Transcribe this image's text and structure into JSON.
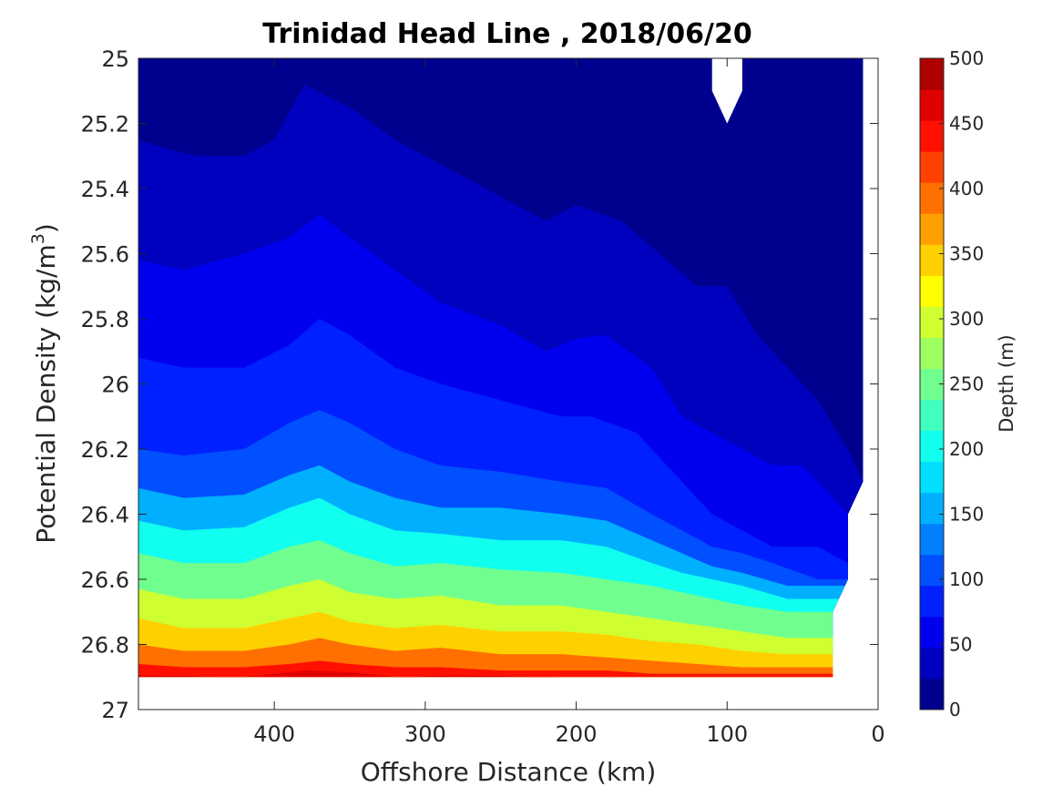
{
  "chart_data": {
    "type": "contour",
    "title": "Trinidad Head Line , 2018/06/20",
    "xlabel": "Offshore Distance (km)",
    "ylabel_main": "Potential Density (kg/m",
    "ylabel_sup": "3",
    "ylabel_close": ")",
    "xlim": [
      490,
      0
    ],
    "ylim": [
      25,
      27
    ],
    "x_reversed": true,
    "y_reversed": true,
    "xticks": [
      400,
      300,
      200,
      100,
      0
    ],
    "xtick_labels": [
      "400",
      "300",
      "200",
      "100",
      "0"
    ],
    "yticks": [
      25,
      25.2,
      25.4,
      25.6,
      25.8,
      26,
      26.2,
      26.4,
      26.6,
      26.8,
      27
    ],
    "ytick_labels": [
      "25",
      "25.2",
      "25.4",
      "25.6",
      "25.8",
      "26",
      "26.2",
      "26.4",
      "26.6",
      "26.8",
      "27"
    ],
    "colorbar": {
      "label": "Depth (m)",
      "range": [
        0,
        500
      ],
      "ticks": [
        0,
        50,
        100,
        150,
        200,
        250,
        300,
        350,
        400,
        450,
        500
      ],
      "tick_labels": [
        "0",
        "50",
        "100",
        "150",
        "200",
        "250",
        "300",
        "350",
        "400",
        "450",
        "500"
      ],
      "colors": [
        "#00008f",
        "#0000bf",
        "#0000ef",
        "#0020ff",
        "#0050ff",
        "#0080ff",
        "#00b0ff",
        "#00dfff",
        "#10ffef",
        "#40ffbf",
        "#70ff8f",
        "#9fff60",
        "#cfff30",
        "#ffff00",
        "#ffd000",
        "#ffa000",
        "#ff7000",
        "#ff4000",
        "#ff1000",
        "#df0000",
        "#af0000"
      ]
    },
    "data_extent": {
      "x_top": [
        490,
        10
      ],
      "bottom_density": 26.9,
      "east_boundary": [
        [
          10,
          25.0
        ],
        [
          10,
          26.3
        ],
        [
          20,
          26.4
        ],
        [
          20,
          26.6
        ],
        [
          30,
          26.7
        ],
        [
          30,
          26.9
        ]
      ]
    },
    "missing_region": {
      "x": [
        90,
        100,
        110
      ],
      "y_top": 25,
      "y_tip": 25.2
    },
    "depth_contours": [
      {
        "level": 10,
        "points": [
          [
            490,
            25.0
          ],
          [
            440,
            25.0
          ],
          [
            410,
            25.0
          ],
          [
            400,
            25.0
          ],
          [
            300,
            25.0
          ],
          [
            280,
            25.0
          ],
          [
            210,
            25.0
          ],
          [
            150,
            25.0
          ],
          [
            125,
            25.0
          ],
          [
            115,
            25.0
          ]
        ]
      },
      {
        "level": 20,
        "points": [
          [
            490,
            25.06
          ],
          [
            460,
            25.04
          ],
          [
            420,
            25.0
          ],
          [
            380,
            25.0
          ],
          [
            320,
            25.0
          ],
          [
            290,
            25.1
          ],
          [
            260,
            25.18
          ],
          [
            220,
            25.18
          ],
          [
            200,
            25.18
          ],
          [
            160,
            25.2
          ],
          [
            130,
            25.3
          ],
          [
            115,
            25.4
          ],
          [
            100,
            25.38
          ],
          [
            85,
            25.05
          ],
          [
            60,
            25.3
          ],
          [
            30,
            25.6
          ],
          [
            15,
            25.8
          ],
          [
            10,
            25.9
          ]
        ]
      },
      {
        "level": 40,
        "points": [
          [
            490,
            25.25
          ],
          [
            470,
            25.28
          ],
          [
            450,
            25.3
          ],
          [
            420,
            25.3
          ],
          [
            400,
            25.25
          ],
          [
            380,
            25.08
          ],
          [
            350,
            25.15
          ],
          [
            320,
            25.25
          ],
          [
            280,
            25.35
          ],
          [
            240,
            25.45
          ],
          [
            220,
            25.5
          ],
          [
            200,
            25.45
          ],
          [
            170,
            25.5
          ],
          [
            140,
            25.62
          ],
          [
            120,
            25.7
          ],
          [
            100,
            25.7
          ],
          [
            80,
            25.85
          ],
          [
            60,
            25.95
          ],
          [
            40,
            26.05
          ],
          [
            20,
            26.2
          ],
          [
            10,
            26.3
          ]
        ]
      },
      {
        "level": 60,
        "points": [
          [
            490,
            25.62
          ],
          [
            460,
            25.65
          ],
          [
            420,
            25.6
          ],
          [
            390,
            25.55
          ],
          [
            370,
            25.48
          ],
          [
            350,
            25.55
          ],
          [
            320,
            25.65
          ],
          [
            290,
            25.75
          ],
          [
            250,
            25.82
          ],
          [
            220,
            25.9
          ],
          [
            200,
            25.86
          ],
          [
            180,
            25.85
          ],
          [
            150,
            25.95
          ],
          [
            130,
            26.1
          ],
          [
            110,
            26.15
          ],
          [
            90,
            26.2
          ],
          [
            70,
            26.25
          ],
          [
            50,
            26.25
          ],
          [
            30,
            26.35
          ],
          [
            20,
            26.4
          ]
        ]
      },
      {
        "level": 80,
        "points": [
          [
            490,
            25.92
          ],
          [
            460,
            25.95
          ],
          [
            420,
            25.95
          ],
          [
            390,
            25.88
          ],
          [
            370,
            25.8
          ],
          [
            350,
            25.85
          ],
          [
            320,
            25.95
          ],
          [
            290,
            26.0
          ],
          [
            250,
            26.05
          ],
          [
            210,
            26.1
          ],
          [
            190,
            26.1
          ],
          [
            160,
            26.15
          ],
          [
            130,
            26.3
          ],
          [
            110,
            26.4
          ],
          [
            90,
            26.45
          ],
          [
            70,
            26.5
          ],
          [
            40,
            26.5
          ],
          [
            20,
            26.55
          ]
        ]
      },
      {
        "level": 100,
        "points": [
          [
            490,
            26.2
          ],
          [
            460,
            26.22
          ],
          [
            420,
            26.2
          ],
          [
            390,
            26.12
          ],
          [
            370,
            26.08
          ],
          [
            350,
            26.12
          ],
          [
            320,
            26.2
          ],
          [
            290,
            26.25
          ],
          [
            250,
            26.27
          ],
          [
            210,
            26.3
          ],
          [
            180,
            26.32
          ],
          [
            150,
            26.4
          ],
          [
            130,
            26.45
          ],
          [
            110,
            26.5
          ],
          [
            90,
            26.52
          ],
          [
            70,
            26.55
          ],
          [
            40,
            26.6
          ],
          [
            20,
            26.6
          ]
        ]
      },
      {
        "level": 150,
        "points": [
          [
            490,
            26.32
          ],
          [
            460,
            26.35
          ],
          [
            420,
            26.34
          ],
          [
            390,
            26.28
          ],
          [
            370,
            26.25
          ],
          [
            350,
            26.3
          ],
          [
            320,
            26.35
          ],
          [
            290,
            26.38
          ],
          [
            250,
            26.38
          ],
          [
            210,
            26.4
          ],
          [
            180,
            26.42
          ],
          [
            150,
            26.48
          ],
          [
            130,
            26.52
          ],
          [
            110,
            26.56
          ],
          [
            90,
            26.58
          ],
          [
            60,
            26.62
          ],
          [
            30,
            26.62
          ],
          [
            20,
            26.62
          ]
        ]
      },
      {
        "level": 200,
        "points": [
          [
            490,
            26.42
          ],
          [
            460,
            26.45
          ],
          [
            420,
            26.44
          ],
          [
            390,
            26.38
          ],
          [
            370,
            26.35
          ],
          [
            350,
            26.4
          ],
          [
            320,
            26.45
          ],
          [
            290,
            26.46
          ],
          [
            250,
            26.48
          ],
          [
            210,
            26.48
          ],
          [
            180,
            26.5
          ],
          [
            150,
            26.55
          ],
          [
            130,
            26.58
          ],
          [
            110,
            26.6
          ],
          [
            90,
            26.62
          ],
          [
            60,
            26.66
          ],
          [
            30,
            26.66
          ]
        ]
      },
      {
        "level": 250,
        "points": [
          [
            490,
            26.52
          ],
          [
            460,
            26.55
          ],
          [
            420,
            26.55
          ],
          [
            390,
            26.5
          ],
          [
            370,
            26.48
          ],
          [
            350,
            26.52
          ],
          [
            320,
            26.56
          ],
          [
            290,
            26.55
          ],
          [
            250,
            26.57
          ],
          [
            210,
            26.58
          ],
          [
            180,
            26.6
          ],
          [
            150,
            26.62
          ],
          [
            120,
            26.65
          ],
          [
            90,
            26.68
          ],
          [
            60,
            26.7
          ],
          [
            30,
            26.7
          ]
        ]
      },
      {
        "level": 300,
        "points": [
          [
            490,
            26.63
          ],
          [
            460,
            26.66
          ],
          [
            420,
            26.66
          ],
          [
            390,
            26.62
          ],
          [
            370,
            26.6
          ],
          [
            350,
            26.64
          ],
          [
            320,
            26.66
          ],
          [
            290,
            26.65
          ],
          [
            250,
            26.68
          ],
          [
            210,
            26.68
          ],
          [
            180,
            26.7
          ],
          [
            150,
            26.72
          ],
          [
            120,
            26.74
          ],
          [
            90,
            26.76
          ],
          [
            60,
            26.78
          ],
          [
            30,
            26.78
          ]
        ]
      },
      {
        "level": 350,
        "points": [
          [
            490,
            26.72
          ],
          [
            460,
            26.75
          ],
          [
            420,
            26.75
          ],
          [
            390,
            26.72
          ],
          [
            370,
            26.7
          ],
          [
            350,
            26.73
          ],
          [
            320,
            26.75
          ],
          [
            290,
            26.74
          ],
          [
            250,
            26.76
          ],
          [
            210,
            26.76
          ],
          [
            180,
            26.77
          ],
          [
            150,
            26.79
          ],
          [
            120,
            26.8
          ],
          [
            90,
            26.82
          ],
          [
            60,
            26.83
          ],
          [
            30,
            26.83
          ]
        ]
      },
      {
        "level": 400,
        "points": [
          [
            490,
            26.8
          ],
          [
            460,
            26.82
          ],
          [
            420,
            26.82
          ],
          [
            390,
            26.8
          ],
          [
            370,
            26.78
          ],
          [
            350,
            26.8
          ],
          [
            320,
            26.82
          ],
          [
            290,
            26.81
          ],
          [
            250,
            26.83
          ],
          [
            210,
            26.83
          ],
          [
            180,
            26.84
          ],
          [
            150,
            26.85
          ],
          [
            120,
            26.86
          ],
          [
            90,
            26.87
          ],
          [
            60,
            26.87
          ],
          [
            30,
            26.87
          ]
        ]
      },
      {
        "level": 450,
        "points": [
          [
            490,
            26.86
          ],
          [
            460,
            26.87
          ],
          [
            420,
            26.87
          ],
          [
            390,
            26.86
          ],
          [
            370,
            26.85
          ],
          [
            350,
            26.86
          ],
          [
            320,
            26.87
          ],
          [
            290,
            26.87
          ],
          [
            250,
            26.88
          ],
          [
            210,
            26.88
          ],
          [
            180,
            26.88
          ],
          [
            150,
            26.89
          ],
          [
            120,
            26.89
          ],
          [
            90,
            26.89
          ],
          [
            60,
            26.89
          ],
          [
            30,
            26.89
          ]
        ]
      },
      {
        "level": 490,
        "points": [
          [
            490,
            26.895
          ],
          [
            420,
            26.9
          ],
          [
            380,
            26.88
          ],
          [
            350,
            26.885
          ],
          [
            320,
            26.9
          ],
          [
            280,
            26.895
          ],
          [
            210,
            26.9
          ],
          [
            150,
            26.9
          ],
          [
            90,
            26.9
          ],
          [
            30,
            26.9
          ]
        ]
      }
    ]
  }
}
